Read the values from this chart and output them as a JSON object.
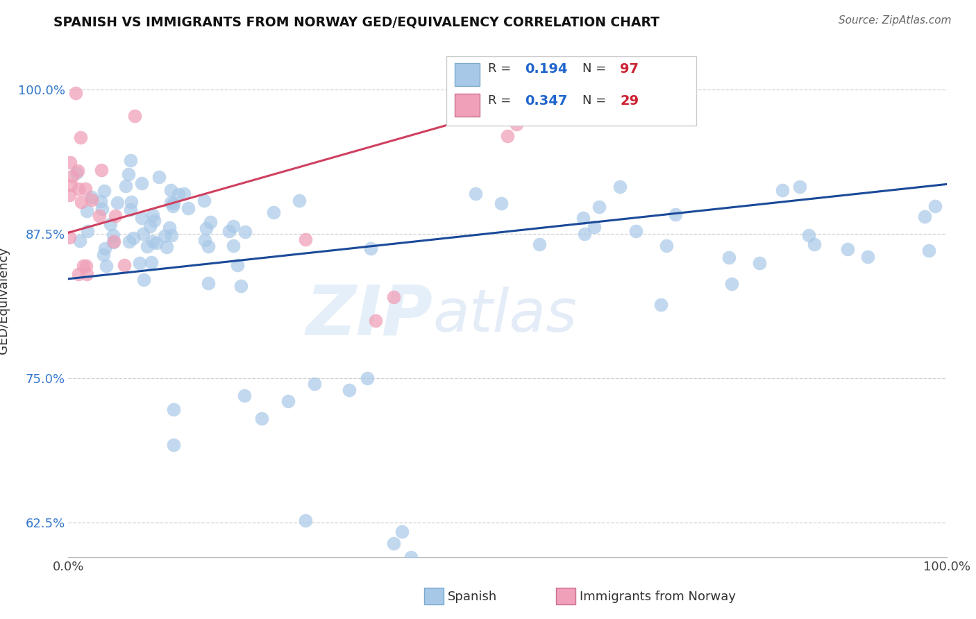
{
  "title": "SPANISH VS IMMIGRANTS FROM NORWAY GED/EQUIVALENCY CORRELATION CHART",
  "source_text": "Source: ZipAtlas.com",
  "ylabel": "GED/Equivalency",
  "xlim": [
    0.0,
    1.0
  ],
  "ylim": [
    0.595,
    1.04
  ],
  "yticks": [
    0.625,
    0.75,
    0.875,
    1.0
  ],
  "ytick_labels": [
    "62.5%",
    "75.0%",
    "87.5%",
    "100.0%"
  ],
  "xticks": [
    0.0,
    0.25,
    0.5,
    0.75,
    1.0
  ],
  "xtick_labels": [
    "0.0%",
    "",
    "",
    "",
    "100.0%"
  ],
  "spanish_color": "#a8c8e8",
  "norway_color": "#f0a0b8",
  "trendline_blue": "#1a4a99",
  "trendline_pink": "#d04060",
  "R_spanish": "0.194",
  "N_spanish": "97",
  "R_norway": "0.347",
  "N_norway": "29",
  "background_color": "#ffffff",
  "grid_color": "#cccccc",
  "watermark_zip": "ZIP",
  "watermark_atlas": "atlas",
  "legend_label_spanish": "Spanish",
  "legend_label_norway": "Immigrants from Norway",
  "blue_trendline_x": [
    0.0,
    1.0
  ],
  "blue_trendline_y": [
    0.836,
    0.918
  ],
  "pink_trendline_x": [
    0.0,
    0.62
  ],
  "pink_trendline_y": [
    0.876,
    1.01
  ]
}
